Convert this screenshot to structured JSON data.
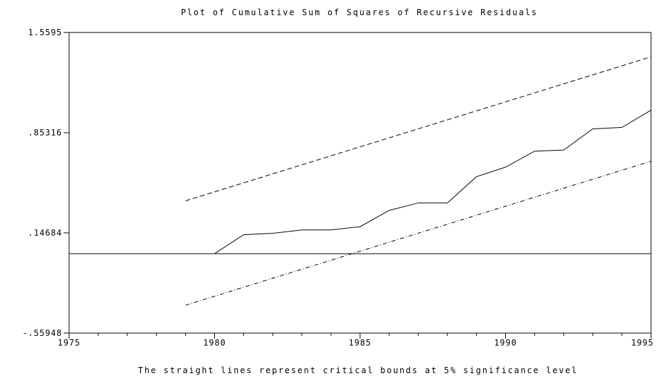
{
  "chart_data": {
    "type": "line",
    "title": "Plot of Cumulative Sum of Squares of Recursive Residuals",
    "caption": "The straight lines represent critical bounds at 5% significance level",
    "xlim": [
      1975,
      1995
    ],
    "ylim": [
      -0.55948,
      1.5595
    ],
    "x_ticks": [
      1975,
      1980,
      1985,
      1990,
      1995
    ],
    "y_ticks": [
      {
        "value": 1.5595,
        "label": "1.5595"
      },
      {
        "value": 0.85316,
        "label": ".85316"
      },
      {
        "value": 0.14684,
        "label": ".14684"
      },
      {
        "value": -0.55948,
        "label": "-.55948"
      }
    ],
    "reference_line": {
      "y": 0.0
    },
    "series": [
      {
        "style": "solid",
        "x": [
          1980,
          1981,
          1982,
          1983,
          1984,
          1985,
          1986,
          1987,
          1988,
          1989,
          1990,
          1991,
          1992,
          1993,
          1994,
          1995
        ],
        "y": [
          0.0,
          0.134,
          0.144,
          0.168,
          0.168,
          0.19,
          0.305,
          0.358,
          0.358,
          0.543,
          0.61,
          0.723,
          0.731,
          0.88,
          0.89,
          1.012
        ]
      },
      {
        "style": "dashed",
        "x": [
          1979,
          1995
        ],
        "y": [
          0.373,
          1.388
        ]
      },
      {
        "style": "dash-dot",
        "x": [
          1979,
          1995
        ],
        "y": [
          -0.363,
          0.652
        ]
      }
    ]
  }
}
